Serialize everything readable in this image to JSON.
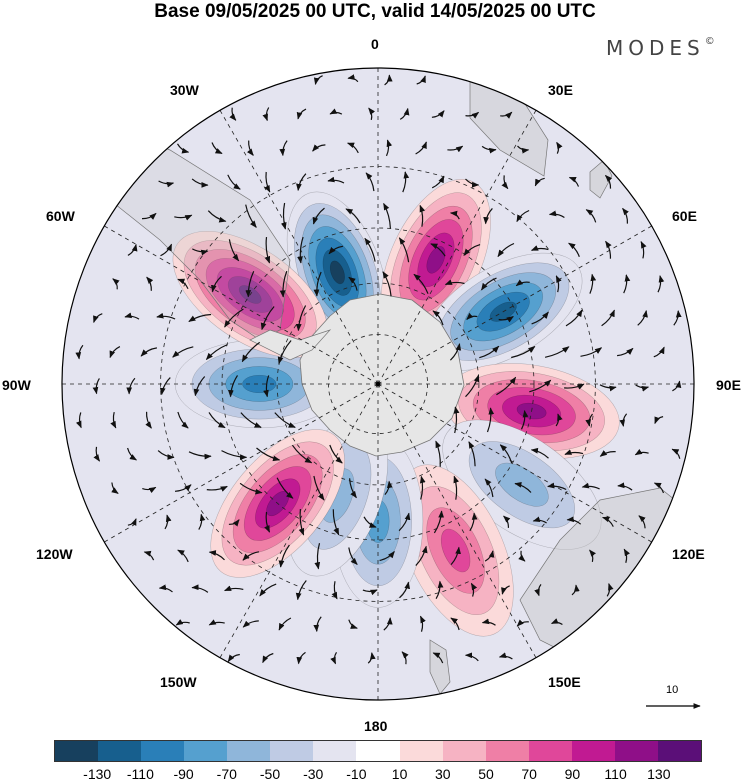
{
  "title": "Base 09/05/2025 00 UTC, valid 14/05/2025 00 UTC",
  "brand": {
    "name": "MODES",
    "mark": "©"
  },
  "longitude_labels": {
    "lon_0": "0",
    "lon_30e": "30E",
    "lon_60e": "60E",
    "lon_90e": "90E",
    "lon_120e": "120E",
    "lon_150e": "150E",
    "lon_180": "180",
    "lon_150w": "150W",
    "lon_120w": "120W",
    "lon_90w": "90W",
    "lon_60w": "60W",
    "lon_30w": "30W"
  },
  "reference_vector": {
    "label": "10"
  },
  "colorbar": {
    "colors": [
      "#17405e",
      "#175f8e",
      "#2a7fb8",
      "#55a0cf",
      "#8fb6da",
      "#bfcbe4",
      "#e4e4f0",
      "#ffffff",
      "#fbdada",
      "#f6b3c3",
      "#ef7fa6",
      "#e0479a",
      "#c11a92",
      "#8f0f88",
      "#5b0f78"
    ],
    "ticks": [
      "-130",
      "-110",
      "-90",
      "-70",
      "-50",
      "-30",
      "-10",
      "10",
      "30",
      "50",
      "70",
      "90",
      "110",
      "130"
    ]
  },
  "map": {
    "projection": "south polar stereographic",
    "continent_color": "#e8e8e8",
    "field": "geopotential height anomaly",
    "anomaly_centers": [
      {
        "lon": -20,
        "lat": -55,
        "value": -125
      },
      {
        "lon": 25,
        "lat": -50,
        "value": 105
      },
      {
        "lon": 60,
        "lat": -48,
        "value": -95
      },
      {
        "lon": 100,
        "lat": -45,
        "value": 100
      },
      {
        "lon": 125,
        "lat": -40,
        "value": -40
      },
      {
        "lon": 155,
        "lat": -38,
        "value": 55
      },
      {
        "lon": 180,
        "lat": -50,
        "value": -55
      },
      {
        "lon": -160,
        "lat": -55,
        "value": -45
      },
      {
        "lon": -140,
        "lat": -45,
        "value": 110
      },
      {
        "lon": -90,
        "lat": -55,
        "value": -90
      },
      {
        "lon": -55,
        "lat": -45,
        "value": 120
      }
    ]
  }
}
